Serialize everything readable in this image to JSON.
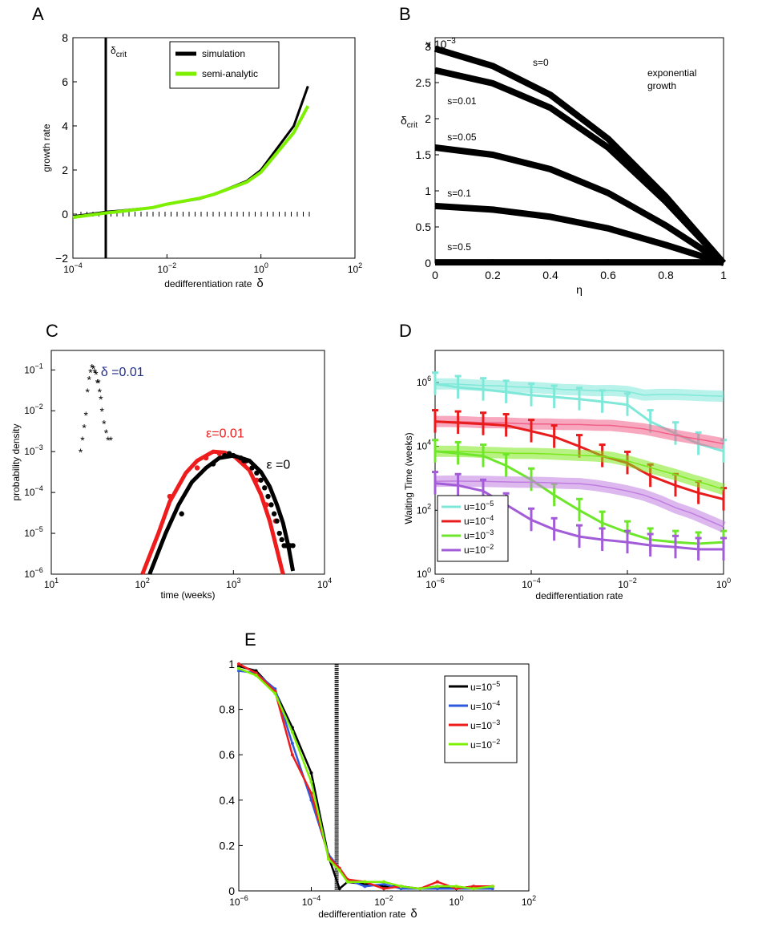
{
  "figure": {
    "panel_labels": [
      "A",
      "B",
      "C",
      "D",
      "E"
    ]
  },
  "chart_data": [
    {
      "id": "A",
      "type": "line",
      "panel_label": "A",
      "xscale": "log",
      "xlim": [
        0.0001,
        100
      ],
      "ylim": [
        -2,
        8
      ],
      "xlabel": "dedifferentiation rate",
      "xlabel_symbol": "δ",
      "ylabel": "growth rate",
      "x_ticks": [
        {
          "v": 0.0001,
          "b": "10",
          "e": "−4"
        },
        {
          "v": 0.01,
          "b": "10",
          "e": "−2"
        },
        {
          "v": 1,
          "b": "10",
          "e": "0"
        },
        {
          "v": 100,
          "b": "10",
          "e": "2"
        }
      ],
      "y_ticks": [
        {
          "v": -2,
          "t": "−2"
        },
        {
          "v": 0,
          "t": "0"
        },
        {
          "v": 2,
          "t": "2"
        },
        {
          "v": 4,
          "t": "4"
        },
        {
          "v": 6,
          "t": "6"
        },
        {
          "v": 8,
          "t": "8"
        }
      ],
      "vline": {
        "x": 0.0005,
        "label": "δ",
        "label_sub": "crit"
      },
      "series": [
        {
          "name": "simulation",
          "color": "#000000",
          "x": [
            0.0001,
            0.0005,
            0.001,
            0.005,
            0.01,
            0.05,
            0.1,
            0.5,
            1,
            5,
            10
          ],
          "y": [
            -0.1,
            0.1,
            0.15,
            0.3,
            0.45,
            0.7,
            0.9,
            1.5,
            2.0,
            4.0,
            5.8
          ]
        },
        {
          "name": "semi-analytic",
          "color": "#7cf000",
          "x": [
            0.0001,
            0.0005,
            0.001,
            0.005,
            0.01,
            0.05,
            0.1,
            0.5,
            1,
            5,
            10
          ],
          "y": [
            -0.15,
            0.05,
            0.12,
            0.3,
            0.45,
            0.72,
            0.9,
            1.45,
            1.9,
            3.7,
            4.9
          ]
        }
      ],
      "dashed_zero_marks": true
    },
    {
      "id": "B",
      "type": "line",
      "panel_label": "B",
      "xlim": [
        0,
        1
      ],
      "ylim": [
        0,
        3
      ],
      "xlabel": "η",
      "ylabel": "δ",
      "ylabel_sub": "crit",
      "y_multiplier": "x 10",
      "y_multiplier_exp": "−3",
      "x_ticks": [
        {
          "v": 0,
          "t": "0"
        },
        {
          "v": 0.2,
          "t": "0.2"
        },
        {
          "v": 0.4,
          "t": "0.4"
        },
        {
          "v": 0.6,
          "t": "0.6"
        },
        {
          "v": 0.8,
          "t": "0.8"
        },
        {
          "v": 1,
          "t": "1"
        }
      ],
      "y_ticks": [
        {
          "v": 0,
          "t": "0"
        },
        {
          "v": 0.5,
          "t": "0.5"
        },
        {
          "v": 1,
          "t": "1"
        },
        {
          "v": 1.5,
          "t": "1.5"
        },
        {
          "v": 2,
          "t": "2"
        },
        {
          "v": 2.5,
          "t": "2.5"
        },
        {
          "v": 3,
          "t": "3"
        }
      ],
      "annotation": [
        "exponential",
        "growth"
      ],
      "series": [
        {
          "name": "s=0",
          "label_x": 0.2,
          "label_y": 2.6,
          "x": [
            0,
            0.2,
            0.4,
            0.6,
            0.8,
            1.0
          ],
          "y": [
            2.97,
            2.73,
            2.33,
            1.72,
            0.92,
            0
          ]
        },
        {
          "name": "s=0.01",
          "label_x": 0.02,
          "label_y": 2.2,
          "x": [
            0,
            0.2,
            0.4,
            0.6,
            0.8,
            1.0
          ],
          "y": [
            2.67,
            2.49,
            2.15,
            1.6,
            0.85,
            0
          ]
        },
        {
          "name": "s=0.05",
          "label_x": 0.02,
          "label_y": 1.7,
          "x": [
            0,
            0.2,
            0.4,
            0.6,
            0.8,
            1.0
          ],
          "y": [
            1.6,
            1.5,
            1.3,
            0.97,
            0.52,
            0
          ]
        },
        {
          "name": "s=0.1",
          "label_x": 0.02,
          "label_y": 0.92,
          "x": [
            0,
            0.2,
            0.4,
            0.6,
            0.8,
            1.0
          ],
          "y": [
            0.79,
            0.74,
            0.64,
            0.48,
            0.25,
            0
          ]
        },
        {
          "name": "s=0.5",
          "label_x": 0.02,
          "label_y": 0.18,
          "x": [
            0,
            1
          ],
          "y": [
            0.01,
            0.01
          ]
        }
      ]
    },
    {
      "id": "C",
      "type": "scatter",
      "panel_label": "C",
      "xscale": "log",
      "yscale": "log",
      "xlim": [
        10,
        10000
      ],
      "ylim": [
        1e-06,
        0.3
      ],
      "xlabel": "time (weeks)",
      "ylabel": "probability density",
      "x_ticks": [
        {
          "v": 10,
          "b": "10",
          "e": "1"
        },
        {
          "v": 100,
          "b": "10",
          "e": "2"
        },
        {
          "v": 1000,
          "b": "10",
          "e": "3"
        },
        {
          "v": 10000,
          "b": "10",
          "e": "4"
        }
      ],
      "y_ticks": [
        {
          "v": 1e-06,
          "b": "10",
          "e": "−6"
        },
        {
          "v": 1e-05,
          "b": "10",
          "e": "−5"
        },
        {
          "v": 0.0001,
          "b": "10",
          "e": "−4"
        },
        {
          "v": 0.001,
          "b": "10",
          "e": "−3"
        },
        {
          "v": 0.01,
          "b": "10",
          "e": "−2"
        },
        {
          "v": 0.1,
          "b": "10",
          "e": "−1"
        }
      ],
      "series": [
        {
          "name": "δ =0.01",
          "color": "#1f2d8a",
          "marker": "star",
          "x": [
            21,
            22,
            23,
            24,
            25,
            26,
            27,
            28,
            29,
            30,
            31,
            32,
            33,
            34,
            35,
            36,
            38,
            40,
            42,
            45
          ],
          "y": [
            0.001,
            0.002,
            0.004,
            0.008,
            0.03,
            0.06,
            0.09,
            0.12,
            0.11,
            0.09,
            0.08,
            0.05,
            0.05,
            0.03,
            0.02,
            0.01,
            0.005,
            0.003,
            0.002,
            0.002
          ]
        },
        {
          "name": "ε=0.01",
          "color": "#ee1c1c",
          "marker": "dot",
          "fit_x": [
            100,
            150,
            200,
            300,
            400,
            600,
            800,
            1000,
            1500,
            2000,
            2500,
            3000,
            3500
          ],
          "fit_y": [
            1e-06,
            1e-05,
            6e-05,
            0.0003,
            0.0006,
            0.001,
            0.00095,
            0.0008,
            0.00035,
            9e-05,
            2e-05,
            4e-06,
            1e-06
          ],
          "x": [
            200,
            400,
            500,
            700,
            900,
            1300,
            1800,
            2300,
            2900
          ],
          "y": [
            8e-05,
            0.0004,
            0.0007,
            0.0009,
            0.0008,
            0.0005,
            0.0002,
            5e-05,
            2e-05
          ]
        },
        {
          "name": "ε =0",
          "color": "#000000",
          "marker": "dot",
          "fit_x": [
            120,
            180,
            250,
            350,
            500,
            700,
            1000,
            1500,
            2000,
            2500,
            3000,
            3500,
            4000,
            4500
          ],
          "fit_y": [
            1e-06,
            1e-05,
            5e-05,
            0.00018,
            0.0004,
            0.0007,
            0.0008,
            0.0006,
            0.00032,
            0.00014,
            5e-05,
            1.8e-05,
            5e-06,
            1.2e-06
          ],
          "x": [
            270,
            600,
            800,
            900,
            1000,
            1200,
            1300,
            1400,
            1600,
            1800,
            2000,
            2200,
            2400,
            2600,
            2800,
            3000,
            3200,
            3400,
            3600,
            3800,
            4000,
            4200,
            4500
          ],
          "y": [
            3e-05,
            0.0005,
            0.0008,
            0.0009,
            0.0008,
            0.0007,
            0.0006,
            0.0006,
            0.0004,
            0.0003,
            0.0002,
            0.00013,
            8e-05,
            5e-05,
            3e-05,
            2e-05,
            1e-05,
            7e-06,
            5e-06,
            5e-06,
            5e-06,
            5e-06,
            5e-06
          ]
        }
      ],
      "labels": [
        {
          "text": "δ =0.01",
          "color": "#1f2d8a",
          "x": 35,
          "y": 0.07
        },
        {
          "text": "ε=0.01",
          "color": "#ee1c1c",
          "x": 500,
          "y": 0.0022
        },
        {
          "text": "ε =0",
          "color": "#000000",
          "x": 2300,
          "y": 0.00038
        }
      ]
    },
    {
      "id": "D",
      "type": "line",
      "panel_label": "D",
      "xscale": "log",
      "yscale": "log",
      "xlim": [
        1e-06,
        1
      ],
      "ylim": [
        1,
        10000000
      ],
      "xlabel": "dedifferentiation rate",
      "ylabel": "Waiting Time (weeks)",
      "x_ticks": [
        {
          "v": 1e-06,
          "b": "10",
          "e": "−6"
        },
        {
          "v": 0.0001,
          "b": "10",
          "e": "−4"
        },
        {
          "v": 0.01,
          "b": "10",
          "e": "−2"
        },
        {
          "v": 1,
          "b": "10",
          "e": "0"
        }
      ],
      "y_ticks": [
        {
          "v": 1,
          "b": "10",
          "e": "0"
        },
        {
          "v": 100,
          "b": "10",
          "e": "2"
        },
        {
          "v": 10000,
          "b": "10",
          "e": "4"
        },
        {
          "v": 1000000,
          "b": "10",
          "e": "6"
        }
      ],
      "x": [
        1e-06,
        2.2e-06,
        4.6e-06,
        1e-05,
        2.2e-05,
        4.6e-05,
        0.0001,
        0.00022,
        0.00046,
        0.001,
        0.0022,
        0.0046,
        0.01,
        0.022,
        0.046,
        0.1,
        0.22,
        0.46,
        1
      ],
      "errorbar_x": [
        1e-06,
        3e-06,
        1e-05,
        3e-05,
        0.0001,
        0.0003,
        0.001,
        0.003,
        0.01,
        0.03,
        0.1,
        0.3,
        1
      ],
      "series": [
        {
          "name": "u=10",
          "exp": "−5",
          "color": "#7fe8d8",
          "band_color": "#7fe8d8",
          "band": [
            900000,
            900000,
            850000,
            800000,
            780000,
            720000,
            700000,
            650000,
            600000,
            580000,
            550000,
            560000,
            520000,
            400000,
            420000,
            420000,
            400000,
            380000,
            370000
          ],
          "sim": [
            900000,
            700000,
            600000,
            500000,
            400000,
            350000,
            300000,
            250000,
            200000,
            60000,
            25000,
            12000,
            7000
          ]
        },
        {
          "name": "u=10",
          "exp": "−4",
          "color": "#e81c1c",
          "band_color": "#f06088",
          "band": [
            60000,
            60000,
            58000,
            55000,
            55000,
            52000,
            50000,
            50000,
            48000,
            48000,
            46000,
            45000,
            40000,
            35000,
            28000,
            22000,
            18000,
            15000,
            12000
          ],
          "sim": [
            60000,
            55000,
            50000,
            45000,
            30000,
            20000,
            10000,
            5000,
            3000,
            1200,
            600,
            350,
            220
          ]
        },
        {
          "name": "u=10",
          "exp": "−3",
          "color": "#6ee62c",
          "band_color": "#7be81c",
          "band": [
            7000,
            7000,
            6800,
            6500,
            6300,
            6000,
            6000,
            5800,
            5500,
            5200,
            5000,
            4500,
            3500,
            2500,
            1800,
            1300,
            900,
            650,
            450
          ],
          "sim": [
            7000,
            6000,
            5000,
            2500,
            900,
            300,
            100,
            40,
            20,
            12,
            10,
            9,
            10
          ]
        },
        {
          "name": "u=10",
          "exp": "−2",
          "color": "#a35cd8",
          "band_color": "#c07de0",
          "band": [
            800,
            820,
            810,
            800,
            780,
            760,
            750,
            730,
            700,
            680,
            600,
            500,
            400,
            300,
            200,
            120,
            80,
            50,
            30
          ],
          "sim": [
            700,
            600,
            400,
            150,
            50,
            25,
            15,
            12,
            10,
            8,
            7,
            6,
            6
          ]
        }
      ]
    },
    {
      "id": "E",
      "type": "line",
      "panel_label": "E",
      "xscale": "log",
      "xlim": [
        1e-06,
        100
      ],
      "ylim": [
        0,
        1
      ],
      "xlabel": "dedifferentiation rate",
      "xlabel_symbol": "δ",
      "ylabel": "",
      "x_ticks": [
        {
          "v": 1e-06,
          "b": "10",
          "e": "−6"
        },
        {
          "v": 0.0001,
          "b": "10",
          "e": "−4"
        },
        {
          "v": 0.01,
          "b": "10",
          "e": "−2"
        },
        {
          "v": 1,
          "b": "10",
          "e": "0"
        },
        {
          "v": 100,
          "b": "10",
          "e": "2"
        }
      ],
      "y_ticks": [
        {
          "v": 0,
          "t": "0"
        },
        {
          "v": 0.2,
          "t": "0.2"
        },
        {
          "v": 0.4,
          "t": "0.4"
        },
        {
          "v": 0.6,
          "t": "0.6"
        },
        {
          "v": 0.8,
          "t": "0.8"
        },
        {
          "v": 1,
          "t": "1"
        }
      ],
      "vline": {
        "x": 0.0005
      },
      "x": [
        1e-06,
        3e-06,
        1e-05,
        3e-05,
        0.0001,
        0.0003,
        0.0006,
        0.001,
        0.003,
        0.01,
        0.03,
        0.1,
        0.3,
        1,
        3,
        10
      ],
      "series": [
        {
          "name": "u=10",
          "exp": "−5",
          "color": "#000000",
          "y": [
            0.99,
            0.97,
            0.88,
            0.72,
            0.52,
            0.15,
            0.01,
            0.04,
            0.03,
            0.02,
            0.02,
            0.01,
            0.02,
            0.01,
            0.02,
            0.02
          ]
        },
        {
          "name": "u=10",
          "exp": "−4",
          "color": "#2f5adf",
          "y": [
            0.97,
            0.96,
            0.89,
            0.65,
            0.4,
            0.16,
            0.1,
            0.05,
            0.02,
            0.03,
            0.01,
            0.01,
            0.01,
            0.01,
            0.01,
            0.01
          ]
        },
        {
          "name": "u=10",
          "exp": "−3",
          "color": "#ee1c1c",
          "y": [
            1.0,
            0.96,
            0.88,
            0.6,
            0.43,
            0.15,
            0.1,
            0.05,
            0.04,
            0.01,
            0.02,
            0.01,
            0.04,
            0.01,
            0.02,
            0.02
          ]
        },
        {
          "name": "u=10",
          "exp": "−2",
          "color": "#7cf000",
          "y": [
            0.98,
            0.95,
            0.87,
            0.7,
            0.48,
            0.14,
            0.09,
            0.04,
            0.04,
            0.04,
            0.02,
            0.01,
            0.02,
            0.02,
            0.01,
            0.02
          ]
        }
      ]
    }
  ]
}
